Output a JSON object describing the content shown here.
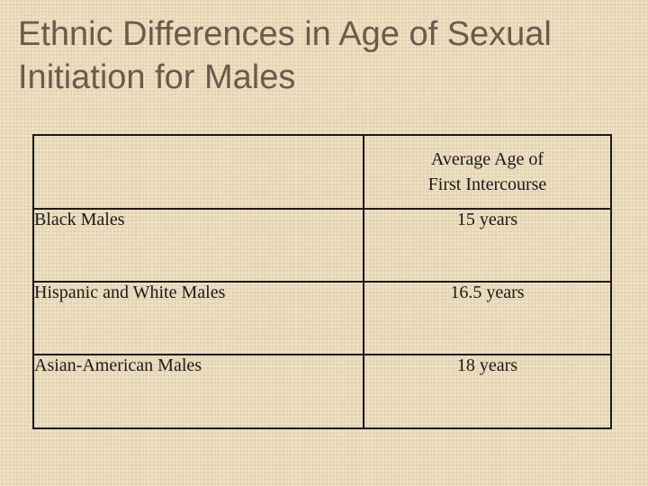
{
  "slide": {
    "title_line1": "Ethnic Differences in Age of Sexual",
    "title_line2": "Initiation for Males"
  },
  "table": {
    "header": {
      "first_cell": "",
      "value_line1": "Average Age of",
      "value_line2": "First Intercourse"
    },
    "rows": [
      {
        "group": "Black Males",
        "value": "15 years"
      },
      {
        "group": "Hispanic and White Males",
        "value": "16.5 years"
      },
      {
        "group": "Asian-American Males",
        "value": "18 years"
      }
    ]
  },
  "colors": {
    "background": "#ecdcb8",
    "title_text": "#6d5a4d",
    "table_text": "#1a1a1a",
    "table_border": "#1a1a1a"
  }
}
